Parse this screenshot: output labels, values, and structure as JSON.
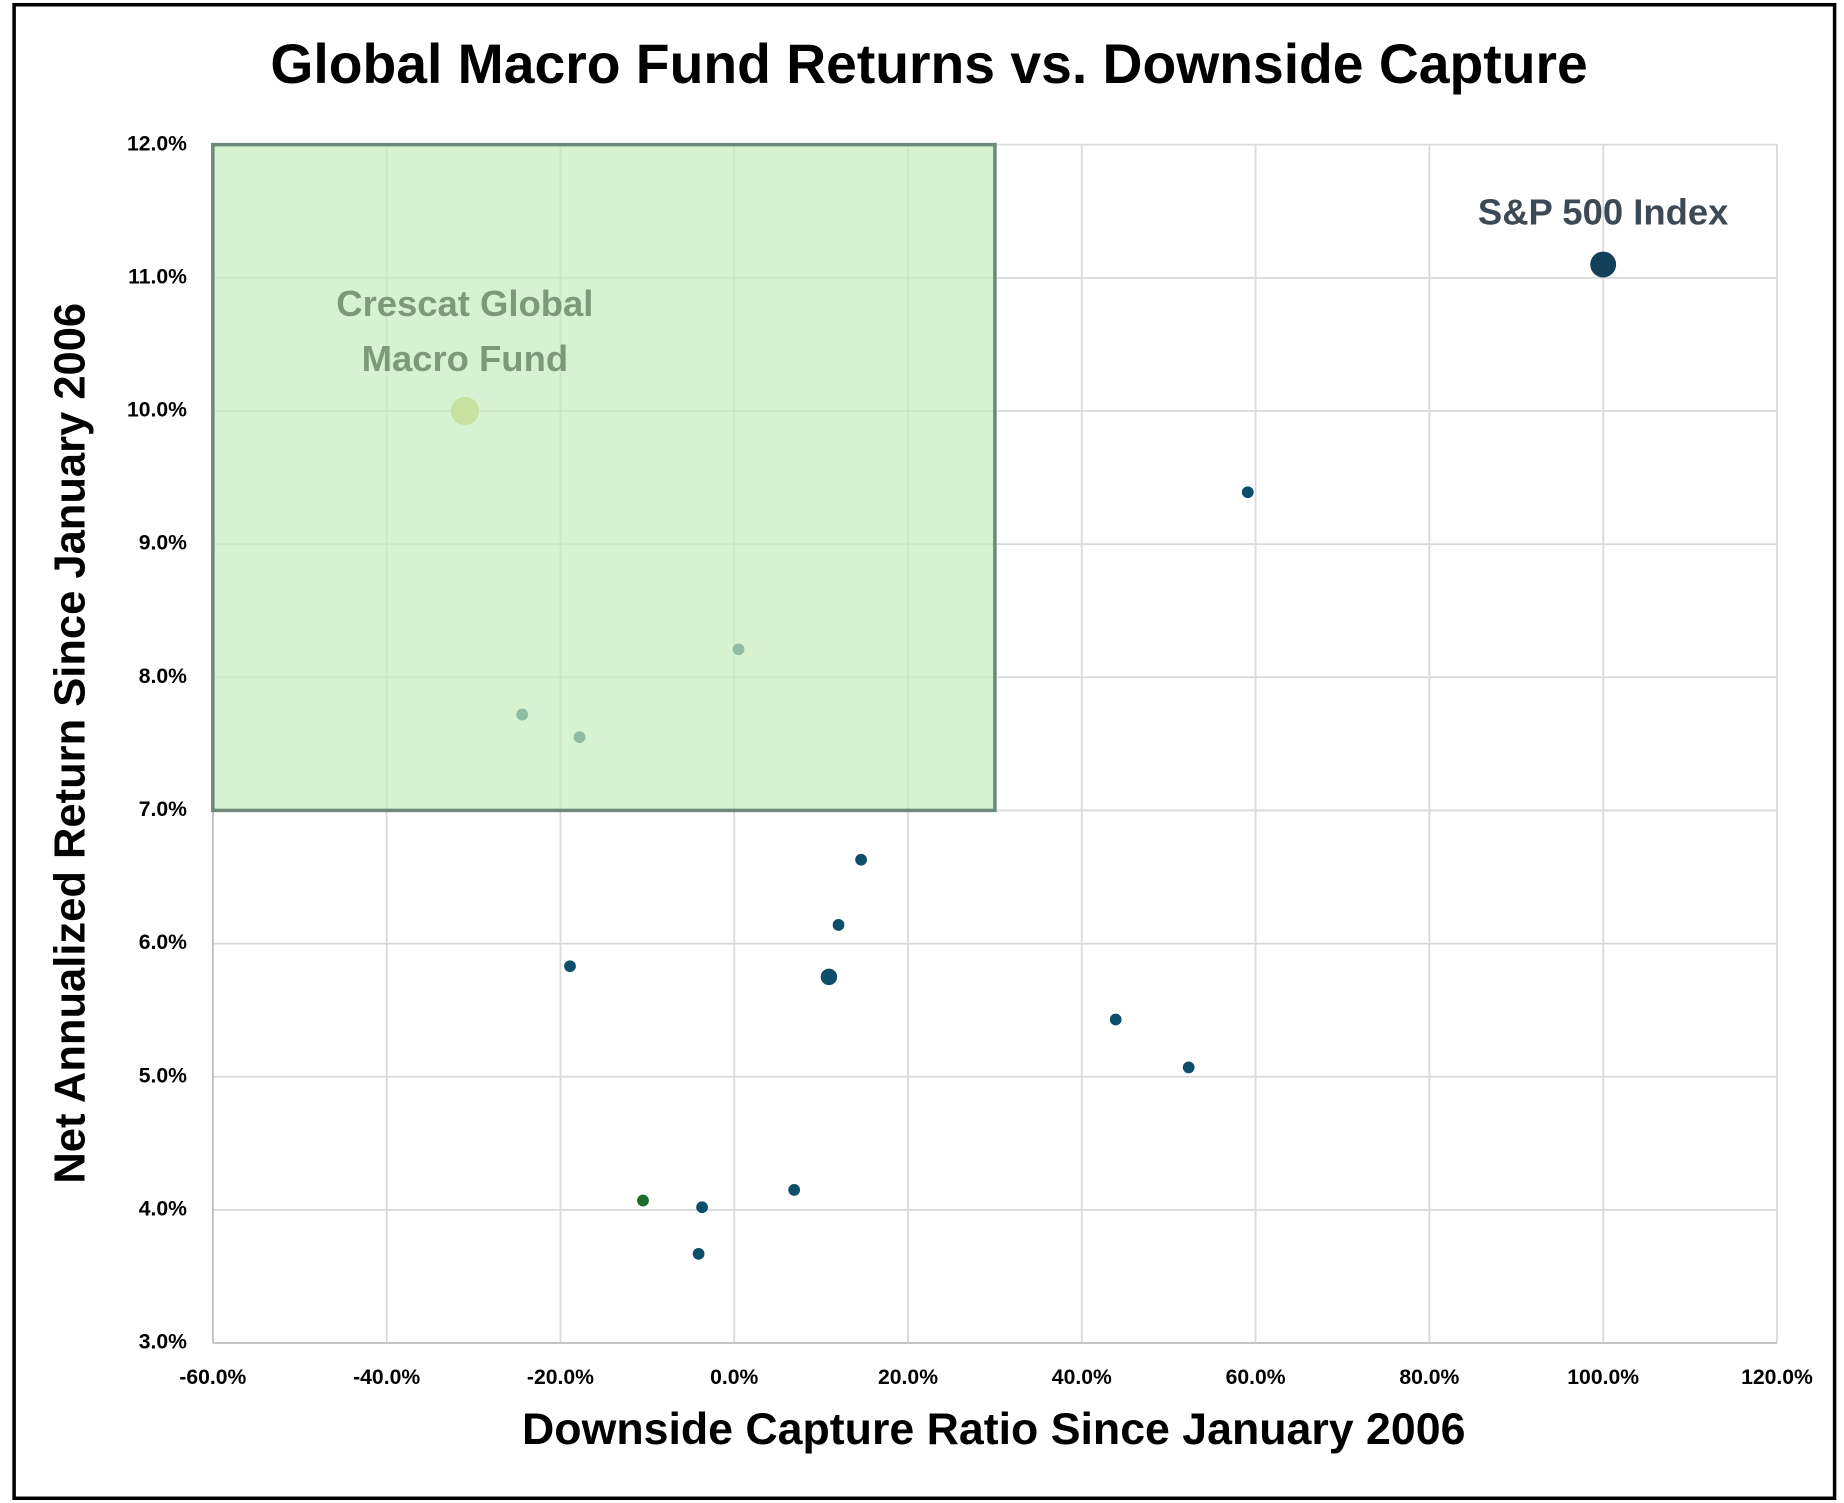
{
  "chart_data": {
    "type": "scatter",
    "title": "Global Macro Fund Returns vs. Downside Capture",
    "x_label": "Downside Capture Ratio Since January 2006",
    "y_label": "Net Annualized Return Since January 2006",
    "x": [
      100,
      -31,
      59.1,
      0.5,
      -24.4,
      -17.8,
      14.6,
      12,
      -18.9,
      10.9,
      43.9,
      52.3,
      -10.5,
      -3.7,
      6.9,
      -4.1
    ],
    "values": [
      11.1,
      10,
      9.39,
      8.21,
      7.72,
      7.55,
      6.63,
      6.14,
      5.83,
      5.75,
      5.43,
      5.07,
      4.07,
      4.02,
      4.15,
      3.67
    ],
    "colors": [
      "#123f5a",
      "#c9c95c",
      "#0d4f6b",
      "#0d4f6b",
      "#0d4f6b",
      "#0d4f6b",
      "#0d4f6b",
      "#0d4f6b",
      "#0d4f6b",
      "#0d4f6b",
      "#0d4f6b",
      "#0d4f6b",
      "#1e6b2e",
      "#0d4f6b",
      "#0d4f6b",
      "#0d4f6b"
    ],
    "sizes": [
      11,
      12,
      5,
      5,
      5,
      5,
      5,
      5,
      5,
      7,
      5,
      5,
      5,
      5,
      5,
      5
    ],
    "annotations": [
      {
        "lines": [
          "S&P 500 Index"
        ],
        "x": 100,
        "y": 11.1,
        "color": "#3d4a55"
      },
      {
        "lines": [
          "Crescat Global",
          "Macro Fund"
        ],
        "x": -31,
        "y": 10,
        "color": "#7a9a78"
      }
    ],
    "highlight_region": {
      "xlim": [
        -60,
        30
      ],
      "ylim": [
        7,
        12
      ],
      "color": "#c6edbc",
      "border": "#6b8a7a"
    },
    "xlim": [
      -60,
      120
    ],
    "xticks": [
      {
        "value": -60,
        "label": "-60.0%"
      },
      {
        "value": -40,
        "label": "-40.0%"
      },
      {
        "value": -20,
        "label": "-20.0%"
      },
      {
        "value": 0,
        "label": "0.0%"
      },
      {
        "value": 20,
        "label": "20.0%"
      },
      {
        "value": 40,
        "label": "40.0%"
      },
      {
        "value": 60,
        "label": "60.0%"
      },
      {
        "value": 80,
        "label": "80.0%"
      },
      {
        "value": 100,
        "label": "100.0%"
      },
      {
        "value": 120,
        "label": "120.0%"
      }
    ],
    "ylim": [
      3,
      12
    ],
    "yticks": [
      {
        "value": 3,
        "label": "3.0%"
      },
      {
        "value": 4,
        "label": "4.0%"
      },
      {
        "value": 5,
        "label": "5.0%"
      },
      {
        "value": 6,
        "label": "6.0%"
      },
      {
        "value": 7,
        "label": "7.0%"
      },
      {
        "value": 8,
        "label": "8.0%"
      },
      {
        "value": 9,
        "label": "9.0%"
      },
      {
        "value": 10,
        "label": "10.0%"
      },
      {
        "value": 11,
        "label": "11.0%"
      },
      {
        "value": 12,
        "label": "12.0%"
      }
    ],
    "grid": true
  }
}
